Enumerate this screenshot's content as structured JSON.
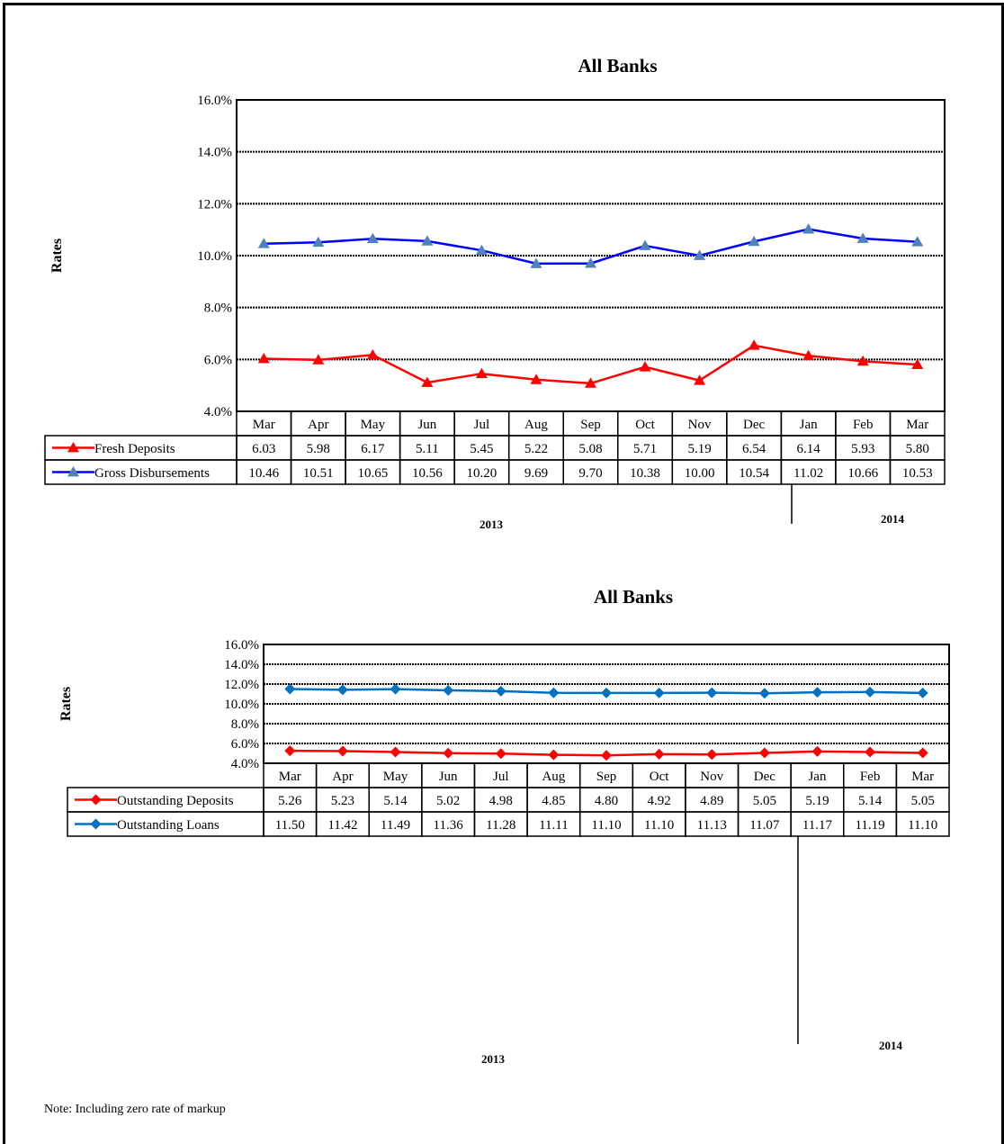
{
  "note": "Note: Including zero rate of markup",
  "chart_data": [
    {
      "type": "line",
      "title": "All Banks",
      "ylabel": "Rates",
      "ylim": [
        4,
        16
      ],
      "yticks": [
        "4.0%",
        "6.0%",
        "8.0%",
        "10.0%",
        "12.0%",
        "14.0%",
        "16.0%"
      ],
      "categories": [
        "Mar",
        "Apr",
        "May",
        "Jun",
        "Jul",
        "Aug",
        "Sep",
        "Oct",
        "Nov",
        "Dec",
        "Jan",
        "Feb",
        "Mar"
      ],
      "year_labels": [
        "2013",
        "2014"
      ],
      "grid": true,
      "series": [
        {
          "name": "Fresh Deposits",
          "color": "#ff0000",
          "marker": "triangle",
          "values": [
            6.03,
            5.98,
            6.17,
            5.11,
            5.45,
            5.22,
            5.08,
            5.71,
            5.19,
            6.54,
            6.14,
            5.93,
            5.8
          ],
          "display": [
            "6.03",
            "5.98",
            "6.17",
            "5.11",
            "5.45",
            "5.22",
            "5.08",
            "5.71",
            "5.19",
            "6.54",
            "6.14",
            "5.93",
            "5.80"
          ]
        },
        {
          "name": "Gross Disbursements",
          "color": "#0000ff",
          "marker_color": "#4f81bd",
          "marker": "triangle",
          "values": [
            10.46,
            10.51,
            10.65,
            10.56,
            10.2,
            9.69,
            9.7,
            10.38,
            10.0,
            10.54,
            11.02,
            10.66,
            10.53
          ],
          "display": [
            "10.46",
            "10.51",
            "10.65",
            "10.56",
            "10.20",
            "9.69",
            "9.70",
            "10.38",
            "10.00",
            "10.54",
            "11.02",
            "10.66",
            "10.53"
          ]
        }
      ]
    },
    {
      "type": "line",
      "title": "All Banks",
      "ylabel": "Rates",
      "ylim": [
        4,
        16
      ],
      "yticks": [
        "4.0%",
        "6.0%",
        "8.0%",
        "10.0%",
        "12.0%",
        "14.0%",
        "16.0%"
      ],
      "categories": [
        "Mar",
        "Apr",
        "May",
        "Jun",
        "Jul",
        "Aug",
        "Sep",
        "Oct",
        "Nov",
        "Dec",
        "Jan",
        "Feb",
        "Mar"
      ],
      "year_labels": [
        "2013",
        "2014"
      ],
      "grid": true,
      "series": [
        {
          "name": "Outstanding Deposits",
          "color": "#ff0000",
          "marker": "diamond",
          "values": [
            5.26,
            5.23,
            5.14,
            5.02,
            4.98,
            4.85,
            4.8,
            4.92,
            4.89,
            5.05,
            5.19,
            5.14,
            5.05
          ],
          "display": [
            "5.26",
            "5.23",
            "5.14",
            "5.02",
            "4.98",
            "4.85",
            "4.80",
            "4.92",
            "4.89",
            "5.05",
            "5.19",
            "5.14",
            "5.05"
          ]
        },
        {
          "name": "Outstanding Loans",
          "color": "#0070c0",
          "marker": "diamond",
          "values": [
            11.5,
            11.42,
            11.49,
            11.36,
            11.28,
            11.11,
            11.1,
            11.1,
            11.13,
            11.07,
            11.17,
            11.19,
            11.1
          ],
          "display": [
            "11.50",
            "11.42",
            "11.49",
            "11.36",
            "11.28",
            "11.11",
            "11.10",
            "11.10",
            "11.13",
            "11.07",
            "11.17",
            "11.19",
            "11.10"
          ]
        }
      ]
    }
  ]
}
